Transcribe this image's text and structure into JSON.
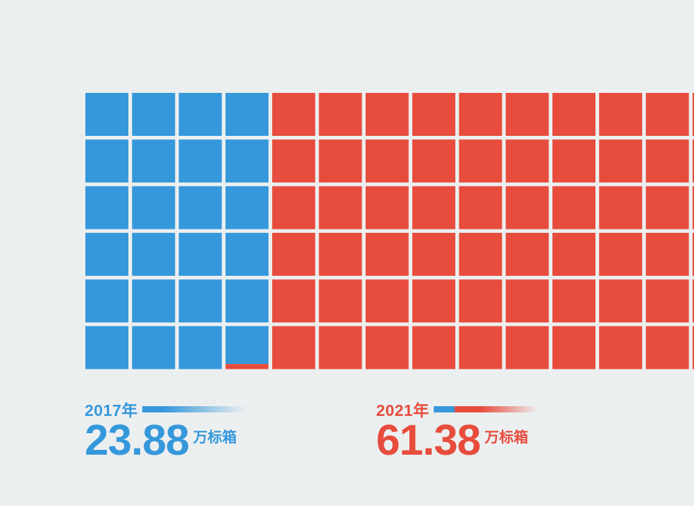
{
  "colors": {
    "blue": "#3598db",
    "red": "#e74c3c",
    "background": "#eceff0"
  },
  "legend_2017": {
    "year": "2017年",
    "value": "23.88",
    "unit": "万标箱"
  },
  "legend_2021": {
    "year": "2021年",
    "value": "61.38",
    "unit": "万标箱"
  },
  "chart_data": {
    "type": "waffle",
    "unit_per_square": 1,
    "series": [
      {
        "name": "2017年",
        "value": 23.88,
        "color": "#3598db"
      },
      {
        "name": "2021年",
        "value": 61.38,
        "color": "#e74c3c"
      }
    ],
    "rows": 6,
    "fill_direction": "column-major, bottom-to-top within top-to-bottom order"
  }
}
